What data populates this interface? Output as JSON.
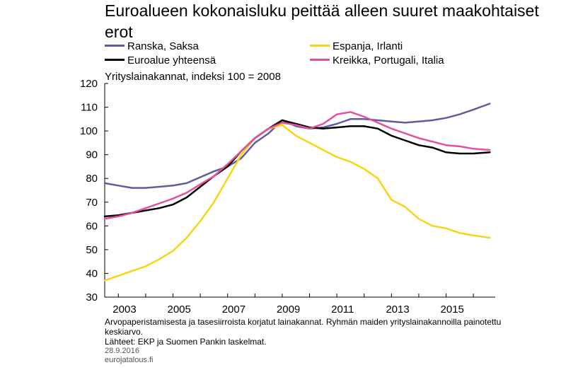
{
  "chart_data": {
    "type": "line",
    "title": "Euroalueen kokonaisluku peittää alleen suuret maakohtaiset erot",
    "subtitle": "Yrityslainakannat, indeksi 100 = 2008",
    "xlabel": "",
    "ylabel": "",
    "xlim": [
      2002.5,
      2016.8
    ],
    "ylim": [
      30,
      120
    ],
    "y_ticks": [
      "120",
      "110",
      "100",
      "90",
      "80",
      "70",
      "60",
      "50",
      "40",
      "30"
    ],
    "x_ticks": [
      "2003",
      "2005",
      "2007",
      "2009",
      "2011",
      "2013",
      "2015"
    ],
    "grid": false,
    "legend_position": "top",
    "series": [
      {
        "name": "Ranska, Saksa",
        "color": "#5b5ea6",
        "x": [
          2002.5,
          2003.0,
          2003.5,
          2004.0,
          2004.5,
          2005.0,
          2005.5,
          2006.0,
          2006.5,
          2007.0,
          2007.5,
          2008.0,
          2008.5,
          2009.0,
          2009.5,
          2010.0,
          2010.5,
          2011.0,
          2011.5,
          2012.0,
          2012.5,
          2013.0,
          2013.5,
          2014.0,
          2014.5,
          2015.0,
          2015.5,
          2016.0,
          2016.6
        ],
        "values": [
          78,
          77,
          76,
          76,
          76.5,
          77,
          78,
          80.5,
          83,
          85,
          88.5,
          95,
          99,
          104.5,
          102,
          101,
          101.5,
          103,
          105,
          105,
          104.5,
          104,
          103.5,
          104,
          104.5,
          105.5,
          107,
          109,
          111.5
        ]
      },
      {
        "name": "Espanja, Irlanti",
        "color": "#f5d514",
        "x": [
          2002.5,
          2003.0,
          2003.5,
          2004.0,
          2004.5,
          2005.0,
          2005.5,
          2006.0,
          2006.5,
          2007.0,
          2007.5,
          2008.0,
          2008.5,
          2009.0,
          2009.5,
          2010.0,
          2010.5,
          2011.0,
          2011.5,
          2012.0,
          2012.5,
          2013.0,
          2013.5,
          2014.0,
          2014.5,
          2015.0,
          2015.5,
          2016.0,
          2016.6
        ],
        "values": [
          37,
          39,
          41,
          43,
          46,
          49.5,
          55,
          62,
          70,
          80,
          90,
          97,
          101,
          102.5,
          98,
          95,
          92,
          89,
          87,
          84,
          80,
          71,
          68,
          63,
          60,
          59,
          57,
          56,
          55
        ]
      },
      {
        "name": "Euroalue yhteensä",
        "color": "#000000",
        "x": [
          2002.5,
          2003.0,
          2003.5,
          2004.0,
          2004.5,
          2005.0,
          2005.5,
          2006.0,
          2006.5,
          2007.0,
          2007.5,
          2008.0,
          2008.5,
          2009.0,
          2009.5,
          2010.0,
          2010.5,
          2011.0,
          2011.5,
          2012.0,
          2012.5,
          2013.0,
          2013.5,
          2014.0,
          2014.5,
          2015.0,
          2015.5,
          2016.0,
          2016.6
        ],
        "values": [
          64,
          64.5,
          65.5,
          66.5,
          67.5,
          69,
          72,
          76.5,
          81,
          85,
          91.5,
          97,
          101,
          104.5,
          103,
          101.5,
          101,
          101.5,
          102,
          102,
          101,
          98,
          96,
          94,
          93,
          91,
          90.5,
          90.5,
          91
        ]
      },
      {
        "name": "Kreikka, Portugali, Italia",
        "color": "#e64f9b",
        "x": [
          2002.5,
          2003.0,
          2003.5,
          2004.0,
          2004.5,
          2005.0,
          2005.5,
          2006.0,
          2006.5,
          2007.0,
          2007.5,
          2008.0,
          2008.5,
          2009.0,
          2009.5,
          2010.0,
          2010.5,
          2011.0,
          2011.5,
          2012.0,
          2012.5,
          2013.0,
          2013.5,
          2014.0,
          2014.5,
          2015.0,
          2015.5,
          2016.0,
          2016.6
        ],
        "values": [
          63,
          64,
          65.5,
          67.5,
          69.5,
          71.5,
          74,
          77.5,
          81,
          86,
          91.5,
          97,
          101,
          103.5,
          102.5,
          101,
          103,
          107,
          108,
          106,
          103.5,
          101,
          99,
          97,
          95.5,
          94,
          93.5,
          92.5,
          92
        ]
      }
    ]
  },
  "footer": {
    "note": "Arvopaperistamisesta ja tasesiirroista korjatut lainakannat. Ryhmän maiden yrityslainakannoilla painotettu keskiarvo.",
    "sources": "Lähteet: EKP ja Suomen Pankin laskelmat.",
    "date": "28.9.2016",
    "site": "eurojatalous.fi"
  }
}
